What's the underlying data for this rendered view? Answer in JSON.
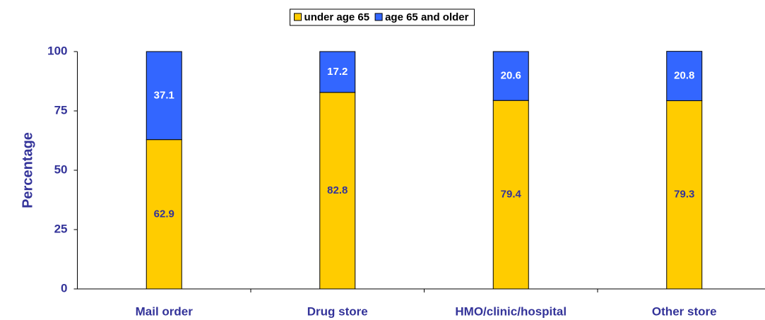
{
  "chart_data": {
    "type": "stacked_bar",
    "categories": [
      "Mail order",
      "Drug store",
      "HMO/clinic/hospital",
      "Other store"
    ],
    "series": [
      {
        "name": "under age 65",
        "color": "#ffcc00",
        "values": [
          62.9,
          82.8,
          79.4,
          79.3
        ]
      },
      {
        "name": "age 65 and older",
        "color": "#3366ff",
        "values": [
          37.1,
          17.2,
          20.6,
          20.8
        ]
      }
    ],
    "y_label": "Percentage",
    "ylim": [
      0,
      100
    ],
    "yticks": [
      0,
      25,
      50,
      75,
      100
    ],
    "grid": false,
    "legend": "top"
  }
}
